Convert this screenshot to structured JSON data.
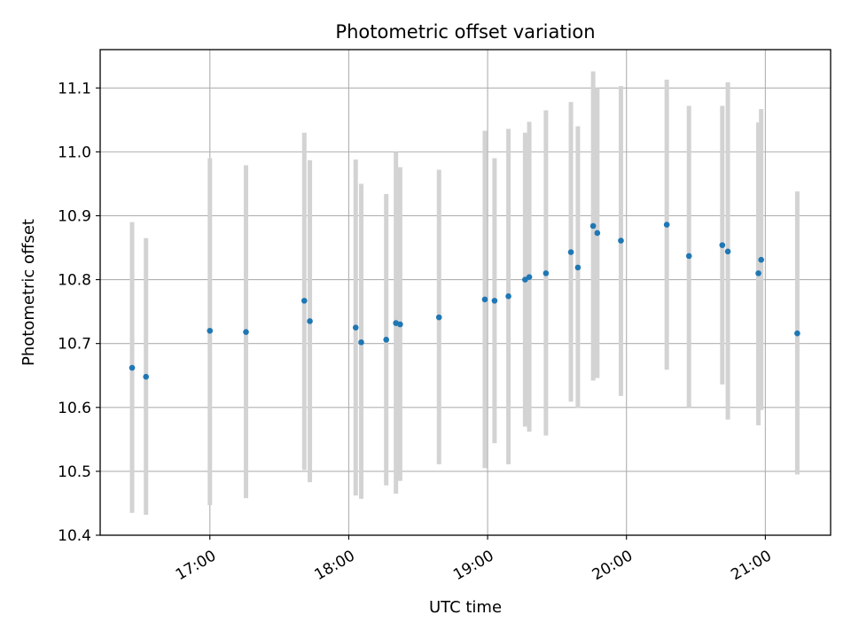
{
  "chart_data": {
    "type": "scatter",
    "title": "Photometric offset variation",
    "xlabel": "UTC time",
    "ylabel": "Photometric offset",
    "x_unit": "hours UTC",
    "xlim": [
      16.21,
      21.47
    ],
    "ylim": [
      10.4,
      11.16
    ],
    "x_ticks": [
      {
        "value": 17,
        "label": "17:00"
      },
      {
        "value": 18,
        "label": "18:00"
      },
      {
        "value": 19,
        "label": "19:00"
      },
      {
        "value": 20,
        "label": "20:00"
      },
      {
        "value": 21,
        "label": "21:00"
      }
    ],
    "y_ticks": [
      {
        "value": 10.4,
        "label": "10.4"
      },
      {
        "value": 10.5,
        "label": "10.5"
      },
      {
        "value": 10.6,
        "label": "10.6"
      },
      {
        "value": 10.7,
        "label": "10.7"
      },
      {
        "value": 10.8,
        "label": "10.8"
      },
      {
        "value": 10.9,
        "label": "10.9"
      },
      {
        "value": 11.0,
        "label": "11.0"
      },
      {
        "value": 11.1,
        "label": "11.1"
      }
    ],
    "grid": true,
    "point_color": "#1f77b4",
    "errorbar_color": "#d3d3d3",
    "points": [
      {
        "x": 16.44,
        "y": 10.662,
        "lo": 10.435,
        "hi": 10.89
      },
      {
        "x": 16.54,
        "y": 10.648,
        "lo": 10.432,
        "hi": 10.865
      },
      {
        "x": 17.0,
        "y": 10.72,
        "lo": 10.447,
        "hi": 10.99
      },
      {
        "x": 17.26,
        "y": 10.718,
        "lo": 10.458,
        "hi": 10.979
      },
      {
        "x": 17.68,
        "y": 10.767,
        "lo": 10.502,
        "hi": 11.03
      },
      {
        "x": 17.72,
        "y": 10.735,
        "lo": 10.483,
        "hi": 10.987
      },
      {
        "x": 18.05,
        "y": 10.725,
        "lo": 10.462,
        "hi": 10.988
      },
      {
        "x": 18.09,
        "y": 10.702,
        "lo": 10.457,
        "hi": 10.95
      },
      {
        "x": 18.27,
        "y": 10.706,
        "lo": 10.478,
        "hi": 10.934
      },
      {
        "x": 18.34,
        "y": 10.732,
        "lo": 10.465,
        "hi": 11.0
      },
      {
        "x": 18.37,
        "y": 10.73,
        "lo": 10.485,
        "hi": 10.976
      },
      {
        "x": 18.65,
        "y": 10.741,
        "lo": 10.511,
        "hi": 10.972
      },
      {
        "x": 18.98,
        "y": 10.769,
        "lo": 10.505,
        "hi": 11.033
      },
      {
        "x": 19.05,
        "y": 10.767,
        "lo": 10.544,
        "hi": 10.99
      },
      {
        "x": 19.15,
        "y": 10.774,
        "lo": 10.511,
        "hi": 11.036
      },
      {
        "x": 19.27,
        "y": 10.8,
        "lo": 10.57,
        "hi": 11.03
      },
      {
        "x": 19.3,
        "y": 10.804,
        "lo": 10.562,
        "hi": 11.047
      },
      {
        "x": 19.42,
        "y": 10.81,
        "lo": 10.556,
        "hi": 11.065
      },
      {
        "x": 19.6,
        "y": 10.843,
        "lo": 10.609,
        "hi": 11.078
      },
      {
        "x": 19.65,
        "y": 10.819,
        "lo": 10.599,
        "hi": 11.04
      },
      {
        "x": 19.76,
        "y": 10.884,
        "lo": 10.642,
        "hi": 11.126
      },
      {
        "x": 19.79,
        "y": 10.873,
        "lo": 10.646,
        "hi": 11.1
      },
      {
        "x": 19.96,
        "y": 10.861,
        "lo": 10.618,
        "hi": 11.103
      },
      {
        "x": 20.29,
        "y": 10.886,
        "lo": 10.659,
        "hi": 11.113
      },
      {
        "x": 20.45,
        "y": 10.837,
        "lo": 10.6,
        "hi": 11.072
      },
      {
        "x": 20.69,
        "y": 10.854,
        "lo": 10.636,
        "hi": 11.072
      },
      {
        "x": 20.73,
        "y": 10.844,
        "lo": 10.581,
        "hi": 11.109
      },
      {
        "x": 20.95,
        "y": 10.81,
        "lo": 10.572,
        "hi": 11.046
      },
      {
        "x": 20.97,
        "y": 10.831,
        "lo": 10.596,
        "hi": 11.067
      },
      {
        "x": 21.23,
        "y": 10.716,
        "lo": 10.495,
        "hi": 10.938
      }
    ]
  }
}
